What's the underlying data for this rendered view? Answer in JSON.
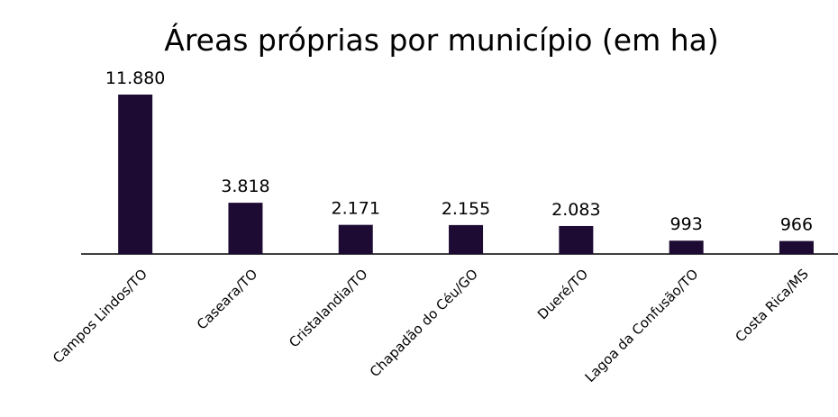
{
  "chart_data": {
    "type": "bar",
    "title": "Áreas próprias por município (em ha)",
    "categories": [
      "Campos Lindos/TO",
      "Caseara/TO",
      "Cristalandia/TO",
      "Chapadão do Céu/GO",
      "Dueré/TO",
      "Lagoa da Confusão/TO",
      "Costa Rica/MS"
    ],
    "values": [
      11880,
      3818,
      2171,
      2155,
      2083,
      993,
      966
    ],
    "value_labels": [
      "11.880",
      "3.818",
      "2.171",
      "2.155",
      "2.083",
      "993",
      "966"
    ],
    "color": "#1e0b33"
  }
}
